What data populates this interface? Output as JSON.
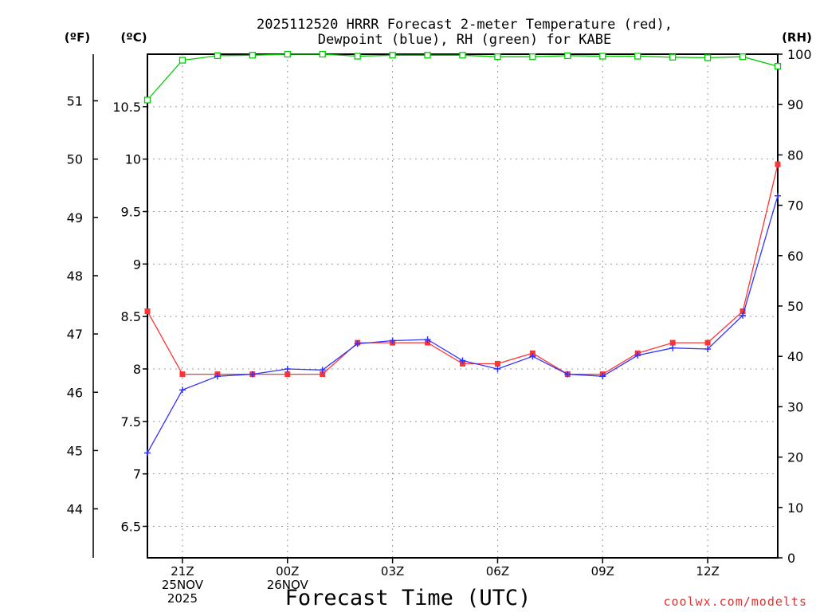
{
  "chart_data": {
    "type": "line",
    "title_line1": "2025112520 HRRR Forecast 2-meter Temperature (red),",
    "title_line2": "Dewpoint (blue), RH (green) for KABE",
    "xlabel": "Forecast Time (UTC)",
    "watermark": "coolwx.com/modelts",
    "unit_labels": {
      "fahrenheit": "(ºF)",
      "celsius": "(ºC)",
      "rh": "(RH)"
    },
    "x_hours": [
      0,
      1,
      2,
      3,
      4,
      5,
      6,
      7,
      8,
      9,
      10,
      11,
      12,
      13,
      14,
      15,
      16,
      17,
      18
    ],
    "x_ticks": [
      {
        "hour": 1,
        "lines": [
          "21Z",
          "25NOV",
          "2025"
        ]
      },
      {
        "hour": 4,
        "lines": [
          "00Z",
          "26NOV"
        ]
      },
      {
        "hour": 7,
        "lines": [
          "03Z"
        ]
      },
      {
        "hour": 10,
        "lines": [
          "06Z"
        ]
      },
      {
        "hour": 13,
        "lines": [
          "09Z"
        ]
      },
      {
        "hour": 16,
        "lines": [
          "12Z"
        ]
      }
    ],
    "celsius_axis": {
      "min": 6.2,
      "max": 11.0,
      "ticks": [
        "6.5",
        "7",
        "7.5",
        "8",
        "8.5",
        "9",
        "9.5",
        "10",
        "10.5"
      ]
    },
    "fahrenheit_axis": {
      "ticks": [
        "44",
        "45",
        "46",
        "47",
        "48",
        "49",
        "50",
        "51"
      ]
    },
    "rh_axis": {
      "min": 0,
      "max": 100,
      "ticks": [
        "0",
        "10",
        "20",
        "30",
        "40",
        "50",
        "60",
        "70",
        "80",
        "90",
        "100"
      ]
    },
    "series": [
      {
        "name": "Temperature",
        "unit": "C",
        "color": "#ff3333",
        "values": [
          8.55,
          7.95,
          7.95,
          7.95,
          7.95,
          7.95,
          8.25,
          8.25,
          8.25,
          8.05,
          8.05,
          8.15,
          7.95,
          7.95,
          8.15,
          8.25,
          8.25,
          8.55,
          9.95
        ]
      },
      {
        "name": "Dewpoint",
        "unit": "C",
        "color": "#3333ff",
        "values": [
          7.2,
          7.8,
          7.93,
          7.95,
          8.0,
          7.99,
          8.24,
          8.27,
          8.28,
          8.08,
          8.0,
          8.12,
          7.95,
          7.93,
          8.13,
          8.2,
          8.19,
          8.51,
          9.65
        ]
      },
      {
        "name": "RH",
        "unit": "%",
        "color": "#00cc00",
        "values": [
          90.9,
          98.8,
          99.7,
          99.8,
          100,
          100,
          99.6,
          99.8,
          99.8,
          99.8,
          99.5,
          99.5,
          99.7,
          99.6,
          99.6,
          99.4,
          99.3,
          99.5,
          97.6
        ]
      }
    ]
  }
}
